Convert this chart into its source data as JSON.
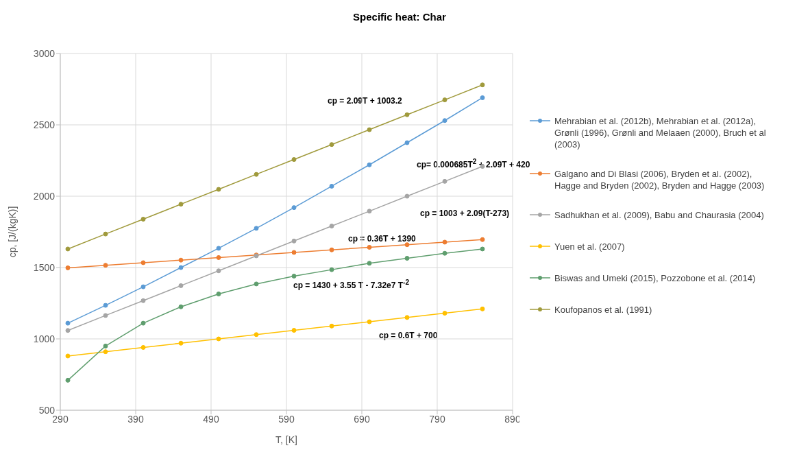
{
  "chart_data": {
    "type": "line",
    "title": "Specific heat: Char",
    "xlabel": "T, [K]",
    "ylabel": "cp, [J/(kgK)]",
    "x": [
      300,
      350,
      400,
      450,
      500,
      550,
      600,
      650,
      700,
      750,
      800,
      850
    ],
    "xlim": [
      290,
      890
    ],
    "xticks": [
      290,
      390,
      490,
      590,
      690,
      790,
      890
    ],
    "ylim": [
      500,
      3000
    ],
    "yticks": [
      500,
      1000,
      1500,
      2000,
      2500,
      3000
    ],
    "grid": true,
    "legend": "right",
    "marker": "circle",
    "line_style": "solid",
    "series": [
      {
        "name": "Mehrabian  et al. (2012b), Mehrabian et al. (2012a), Grønli (1996), Grønli and Melaaen (2000), Bruch et al (2003)",
        "color": "#5b9bd5",
        "values": [
          1110,
          1235,
          1365,
          1500,
          1635,
          1775,
          1920,
          2070,
          2220,
          2375,
          2530,
          2690
        ]
      },
      {
        "name": "Galgano and Di Blasi (2006), Bryden et al. (2002), Hagge and Bryden (2002), Bryden and Hagge (2003)",
        "color": "#ed7d31",
        "values": [
          1498,
          1516,
          1534,
          1552,
          1570,
          1588,
          1606,
          1624,
          1642,
          1660,
          1678,
          1696
        ]
      },
      {
        "name": "Sadhukhan et al. (2009), Babu and Chaurasia (2004)",
        "color": "#a5a5a5",
        "values": [
          1059,
          1164,
          1268,
          1373,
          1477,
          1582,
          1686,
          1791,
          1895,
          2000,
          2104,
          2209
        ]
      },
      {
        "name": "Yuen et al. (2007)",
        "color": "#ffc000",
        "values": [
          880,
          910,
          940,
          970,
          1000,
          1030,
          1060,
          1090,
          1120,
          1150,
          1180,
          1210
        ]
      },
      {
        "name": "Biswas and Umeki (2015), Pozzobone et al. (2014)",
        "color": "#5f9e6e",
        "values": [
          710,
          950,
          1110,
          1225,
          1315,
          1385,
          1440,
          1485,
          1530,
          1565,
          1600,
          1630
        ]
      },
      {
        "name": "Koufopanos et al. (1991)",
        "color": "#a09a3c",
        "values": [
          1630,
          1735,
          1839,
          1944,
          2048,
          2153,
          2257,
          2362,
          2466,
          2571,
          2675,
          2780
        ]
      }
    ],
    "annotations": [
      "cp = 2.09T + 1003.2",
      "cp= 0.000685T$^{2}$ + 2.09T + 420",
      "cp = 1003 + 2.09(T-273)",
      "cp = 0.36T + 1390",
      "cp = 1430 + 3.55 T - 7.32e7  T$^{-2}$",
      "cp = 0.6T + 700"
    ]
  }
}
